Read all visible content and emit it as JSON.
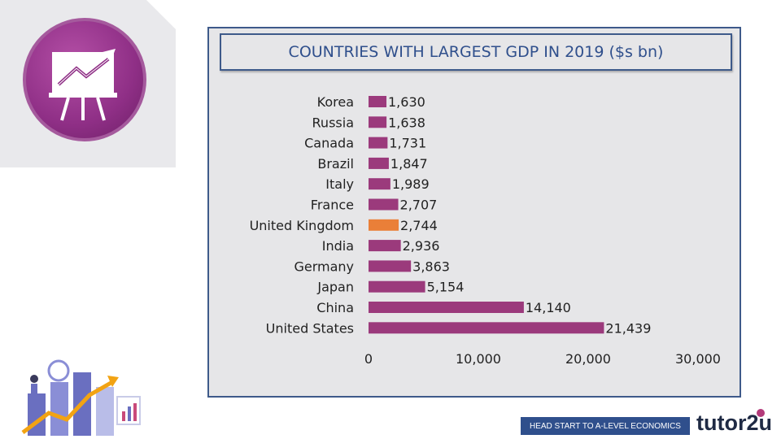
{
  "chart_data": {
    "type": "bar",
    "orientation": "horizontal",
    "title": "COUNTRIES WITH LARGEST GDP IN 2019 ($s bn)",
    "categories": [
      "Korea",
      "Russia",
      "Canada",
      "Brazil",
      "Italy",
      "France",
      "United Kingdom",
      "India",
      "Germany",
      "Japan",
      "China",
      "United States"
    ],
    "values": [
      1630,
      1638,
      1731,
      1847,
      1989,
      2707,
      2744,
      2936,
      3863,
      5154,
      14140,
      21439
    ],
    "value_labels": [
      "1,630",
      "1,638",
      "1,731",
      "1,847",
      "1,989",
      "2,707",
      "2,744",
      "2,936",
      "3,863",
      "5,154",
      "14,140",
      "21,439"
    ],
    "xlim": [
      0,
      30000
    ],
    "x_ticks": [
      0,
      10000,
      20000,
      30000
    ],
    "x_tick_labels": [
      "0",
      "10,000",
      "20,000",
      "30,000"
    ],
    "grid": false,
    "legend": "none",
    "bar_color": "#9b3a7c",
    "highlight": {
      "category": "United Kingdom",
      "color": "#ea7f38"
    }
  },
  "footer": {
    "tagline": "HEAD START TO A-LEVEL ECONOMICS",
    "brand": "tutor2u"
  },
  "colors": {
    "title_text": "#2f4f8c",
    "panel_border": "#3e5a8a",
    "logo_purple": "#8f2f86"
  }
}
